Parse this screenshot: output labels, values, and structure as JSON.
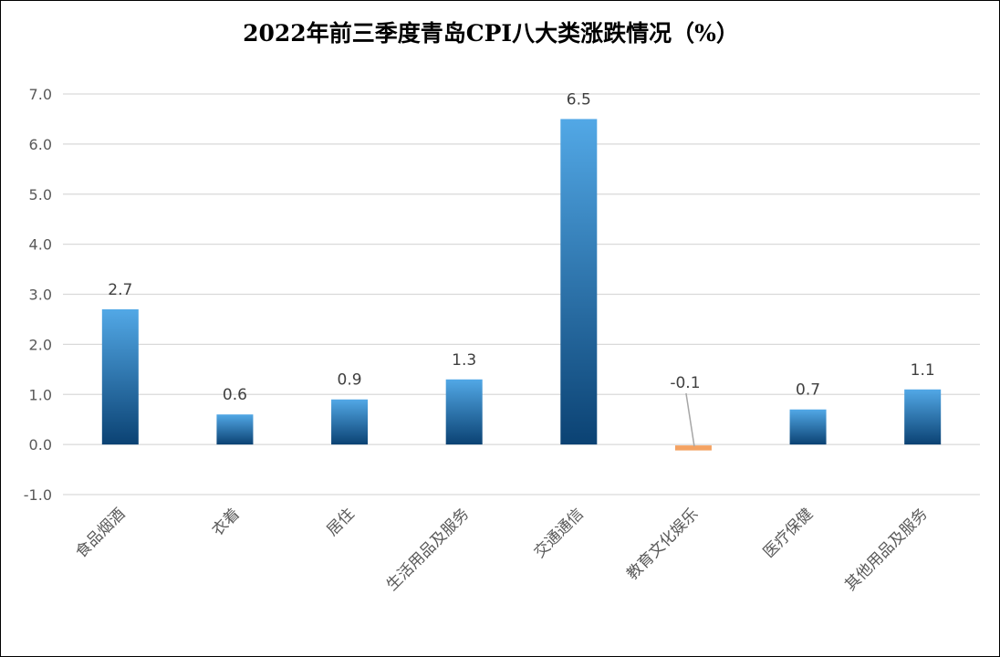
{
  "chart_data": {
    "type": "bar",
    "title": "2022年前三季度青岛CPI八大类涨跌情况（%）",
    "xlabel": "",
    "ylabel": "",
    "ylim": [
      -1.0,
      7.0
    ],
    "yticks": [
      "-1.0",
      "0.0",
      "1.0",
      "2.0",
      "3.0",
      "4.0",
      "5.0",
      "6.0",
      "7.0"
    ],
    "grid": true,
    "categories": [
      "食品烟酒",
      "衣着",
      "居住",
      "生活用品及服务",
      "交通通信",
      "教育文化娱乐",
      "医疗保健",
      "其他用品及服务"
    ],
    "values": [
      2.7,
      0.6,
      0.9,
      1.3,
      6.5,
      -0.1,
      0.7,
      1.1
    ],
    "data_labels": [
      "2.7",
      "0.6",
      "0.9",
      "1.3",
      "6.5",
      "-0.1",
      "0.7",
      "1.1"
    ],
    "colors": {
      "positive_top": "#52a8e6",
      "positive_bottom": "#0b4273",
      "negative": "#f4a262",
      "grid": "#d9d9d9"
    }
  }
}
